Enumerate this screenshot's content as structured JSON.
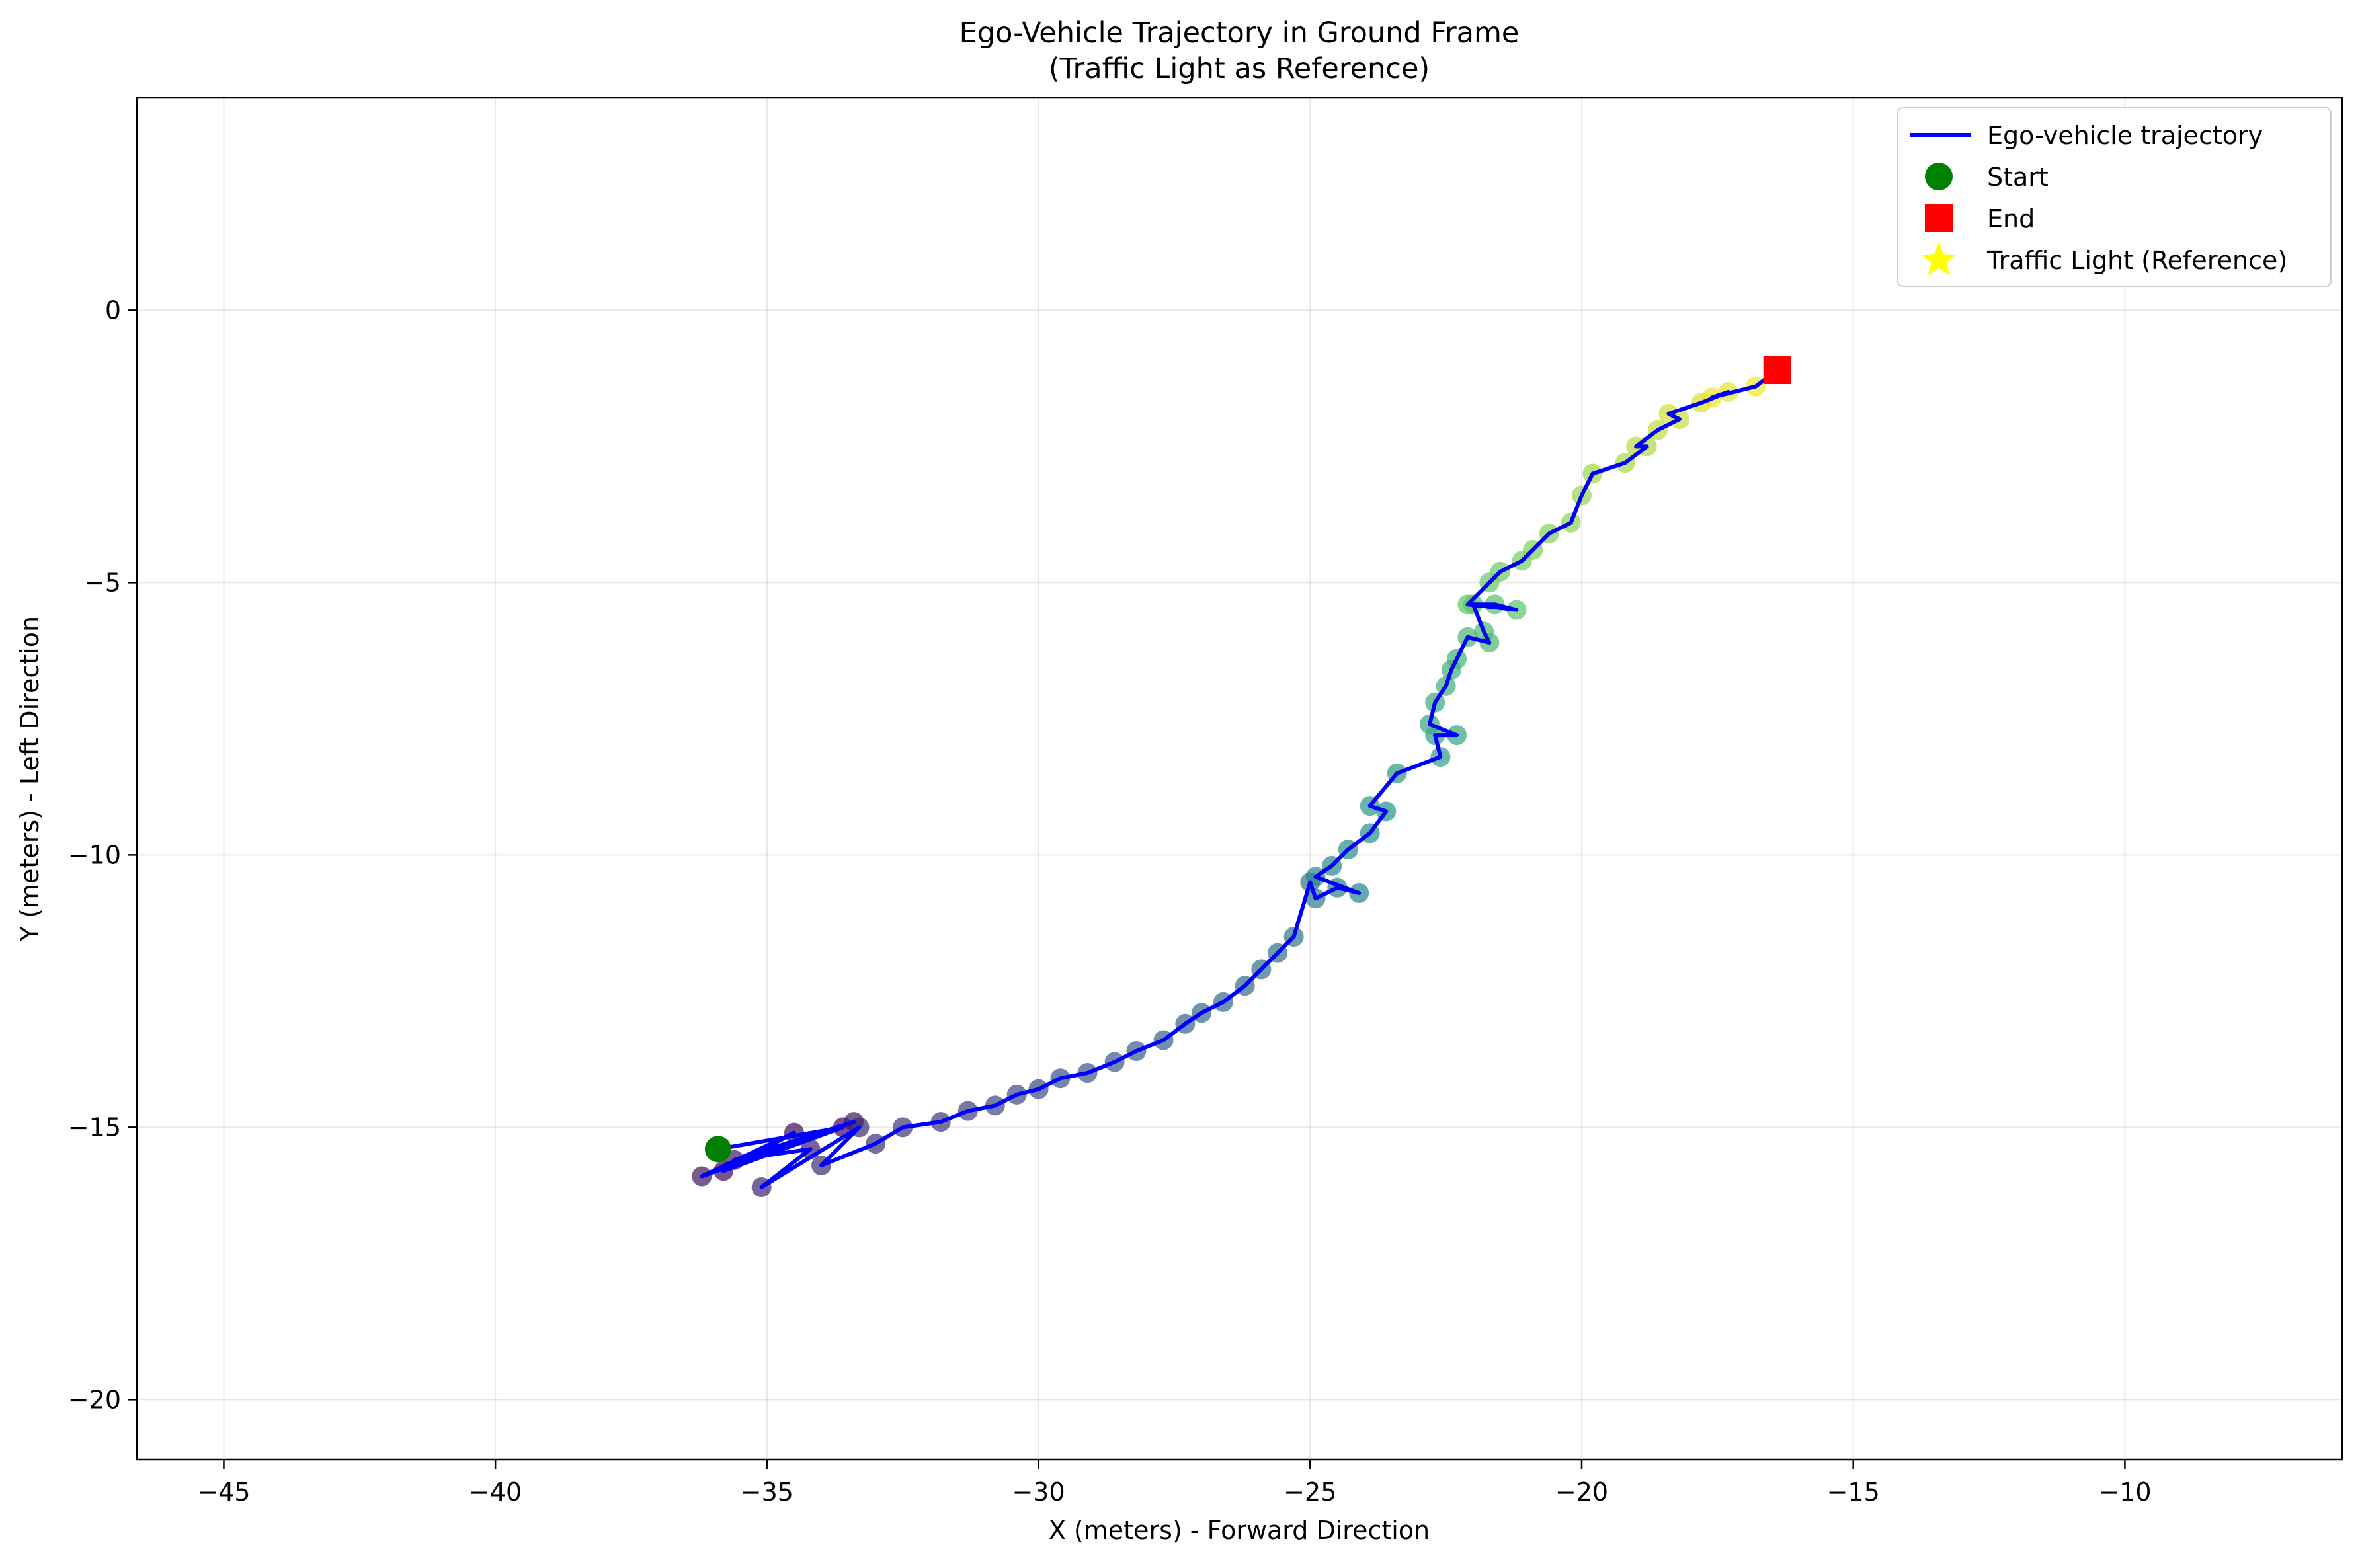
{
  "chart_data": {
    "type": "scatter",
    "title": "Ego-Vehicle Trajectory in Ground Frame",
    "subtitle": "(Traffic Light as Reference)",
    "xlabel": "X (meters) - Forward Direction",
    "ylabel": "Y (meters) - Left Direction",
    "xlim": [
      -46.6,
      -6.0
    ],
    "ylim": [
      -21.1,
      3.9
    ],
    "x_ticks": [
      -45,
      -40,
      -35,
      -30,
      -25,
      -20,
      -15,
      -10
    ],
    "x_tick_labels": [
      "−45",
      "−40",
      "−35",
      "−30",
      "−25",
      "−20",
      "−15",
      "−10"
    ],
    "y_ticks": [
      0,
      -5,
      -10,
      -15,
      -20
    ],
    "y_tick_labels": [
      "0",
      "−5",
      "−10",
      "−15",
      "−20"
    ],
    "grid": true,
    "legend_placement": "top-right",
    "colors": {
      "trajectory": "#0000ff",
      "start": "#008000",
      "end": "#ff0000",
      "traffic_light": "#ffff00",
      "points_colormap": [
        "#440154",
        "#3b528b",
        "#21908d",
        "#5dc962",
        "#fde725"
      ]
    },
    "series": [
      {
        "name": "Ego-vehicle trajectory",
        "kind": "line",
        "x": [
          -35.9,
          -33.6,
          -35.8,
          -34.5,
          -36.2,
          -33.4,
          -35.6,
          -34.2,
          -35.1,
          -33.3,
          -34.0,
          -33.0,
          -32.5,
          -31.8,
          -31.3,
          -30.8,
          -30.4,
          -30.0,
          -29.6,
          -29.1,
          -28.6,
          -28.2,
          -27.7,
          -27.3,
          -27.0,
          -26.6,
          -26.2,
          -25.9,
          -25.6,
          -25.3,
          -25.0,
          -24.9,
          -24.5,
          -24.1,
          -24.9,
          -24.6,
          -24.3,
          -23.9,
          -23.6,
          -23.9,
          -23.4,
          -22.6,
          -22.7,
          -22.3,
          -22.8,
          -22.7,
          -22.5,
          -22.4,
          -22.3,
          -22.1,
          -21.7,
          -21.8,
          -22.0,
          -21.6,
          -21.2,
          -22.1,
          -21.7,
          -21.5,
          -21.1,
          -20.9,
          -20.6,
          -20.2,
          -20.0,
          -19.8,
          -19.2,
          -18.8,
          -19.0,
          -18.6,
          -18.2,
          -18.4,
          -17.8,
          -17.3,
          -17.6,
          -16.8,
          -16.4
        ],
        "y": [
          -15.4,
          -15.0,
          -15.8,
          -15.1,
          -15.9,
          -14.9,
          -15.6,
          -15.4,
          -16.1,
          -15.0,
          -15.7,
          -15.3,
          -15.0,
          -14.9,
          -14.7,
          -14.6,
          -14.4,
          -14.3,
          -14.1,
          -14.0,
          -13.8,
          -13.6,
          -13.4,
          -13.1,
          -12.9,
          -12.7,
          -12.4,
          -12.1,
          -11.8,
          -11.5,
          -10.5,
          -10.8,
          -10.6,
          -10.7,
          -10.4,
          -10.2,
          -9.9,
          -9.6,
          -9.2,
          -9.1,
          -8.5,
          -8.2,
          -7.8,
          -7.8,
          -7.6,
          -7.2,
          -6.9,
          -6.6,
          -6.4,
          -6.0,
          -6.1,
          -5.9,
          -5.4,
          -5.4,
          -5.5,
          -5.4,
          -5.0,
          -4.8,
          -4.6,
          -4.4,
          -4.1,
          -3.9,
          -3.4,
          -3.0,
          -2.8,
          -2.5,
          -2.5,
          -2.2,
          -2.0,
          -1.9,
          -1.7,
          -1.5,
          -1.6,
          -1.4,
          -1.1
        ]
      },
      {
        "name": "Start",
        "kind": "marker",
        "marker": "circle",
        "x": [
          -35.9
        ],
        "y": [
          -15.4
        ]
      },
      {
        "name": "End",
        "kind": "marker",
        "marker": "square",
        "x": [
          -16.4
        ],
        "y": [
          -1.1
        ]
      },
      {
        "name": "Traffic Light (Reference)",
        "kind": "marker",
        "marker": "star",
        "x": [],
        "y": []
      }
    ]
  }
}
